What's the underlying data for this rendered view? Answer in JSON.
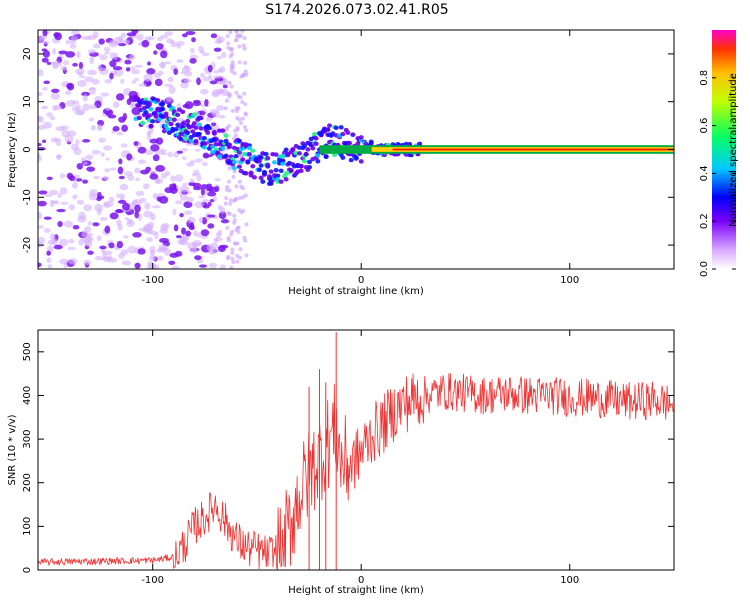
{
  "chart_data": [
    {
      "type": "heatmap",
      "title": "S174.2026.073.02.41.R05",
      "xlabel": "Height of straight line (km)",
      "ylabel": "Frequency (Hz)",
      "xlim": [
        -155,
        150
      ],
      "ylim": [
        -25,
        25
      ],
      "xticks": [
        -100,
        0,
        100
      ],
      "yticks": [
        -20,
        -10,
        0,
        10,
        20
      ],
      "colorbar": {
        "label": "Normalized spectral amplitude",
        "range": [
          0,
          1
        ],
        "ticks": [
          "0.0",
          "0.2",
          "0.4",
          "0.6",
          "0.8"
        ]
      },
      "ridge": {
        "x": [
          -105,
          -95,
          -85,
          -78,
          -70,
          -60,
          -50,
          -45,
          -40,
          -35,
          -30,
          -25,
          -20,
          -15,
          -10,
          -5,
          0,
          5,
          10,
          15,
          20,
          25,
          150
        ],
        "y": [
          8,
          7,
          5,
          4,
          2,
          -1,
          -3,
          -4,
          -4,
          -3,
          -2,
          -1,
          1,
          2,
          1.5,
          1,
          0.5,
          0.5,
          0,
          0,
          0,
          0,
          0
        ]
      }
    },
    {
      "type": "line",
      "xlabel": "Height of straight line (km)",
      "ylabel": "SNR (10 * v/v)",
      "xlim": [
        -155,
        150
      ],
      "ylim": [
        0,
        550
      ],
      "xticks": [
        -100,
        0,
        100
      ],
      "yticks": [
        0,
        100,
        200,
        300,
        400,
        500
      ],
      "color": "#ee3333",
      "series": [
        {
          "x": [
            -155,
            -130,
            -100,
            -90,
            -85,
            -80,
            -75,
            -70,
            -65,
            -60,
            -55,
            -50,
            -45,
            -40,
            -35,
            -30,
            -25,
            -20,
            -15,
            -12,
            -10,
            -5,
            0,
            5,
            10,
            15,
            20,
            25,
            30,
            35,
            40,
            50,
            60,
            70,
            80,
            90,
            100,
            110,
            120,
            130,
            140,
            150
          ],
          "y": [
            18,
            20,
            22,
            30,
            55,
            100,
            120,
            150,
            110,
            70,
            50,
            45,
            35,
            45,
            90,
            170,
            220,
            260,
            300,
            330,
            250,
            240,
            270,
            310,
            330,
            360,
            380,
            390,
            400,
            405,
            410,
            405,
            400,
            405,
            400,
            400,
            395,
            395,
            390,
            385,
            390,
            380
          ]
        }
      ]
    }
  ]
}
